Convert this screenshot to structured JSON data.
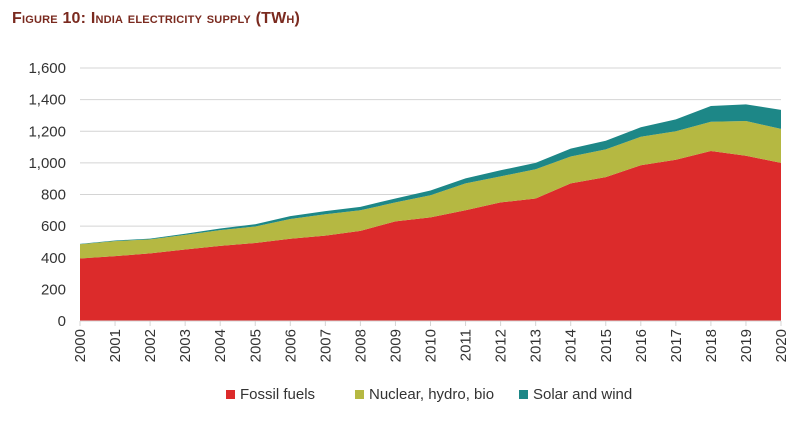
{
  "title": "Figure 10: India electricity supply (TWh)",
  "chart_data": {
    "type": "area",
    "stacked": true,
    "title": "Figure 10: India electricity supply (TWh)",
    "xlabel": "",
    "ylabel": "",
    "x": [
      "2000",
      "2001",
      "2002",
      "2003",
      "2004",
      "2005",
      "2006",
      "2007",
      "2008",
      "2009",
      "2010",
      "2011",
      "2012",
      "2013",
      "2014",
      "2015",
      "2016",
      "2017",
      "2018",
      "2019",
      "2020"
    ],
    "ylim": [
      0,
      1600
    ],
    "yticks": [
      0,
      200,
      400,
      600,
      800,
      1000,
      1200,
      1400,
      1600
    ],
    "ytick_labels": [
      "0",
      "200",
      "400",
      "600",
      "800",
      "1,000",
      "1,200",
      "1,400",
      "1,600"
    ],
    "grid": "horizontal",
    "legend_position": "bottom",
    "series": [
      {
        "name": "Fossil fuels",
        "color": "#dc2b2b",
        "values": [
          395,
          410,
          428,
          452,
          475,
          493,
          520,
          540,
          570,
          630,
          655,
          700,
          750,
          775,
          870,
          910,
          985,
          1020,
          1075,
          1045,
          1000
        ]
      },
      {
        "name": "Nuclear, hydro, bio",
        "color": "#b5b842",
        "values": [
          90,
          95,
          88,
          93,
          100,
          105,
          125,
          135,
          130,
          120,
          140,
          170,
          165,
          185,
          170,
          175,
          180,
          180,
          185,
          220,
          215
        ]
      },
      {
        "name": "Solar and wind",
        "color": "#1d8787",
        "values": [
          3,
          4,
          5,
          7,
          10,
          14,
          18,
          20,
          22,
          25,
          30,
          32,
          38,
          40,
          50,
          55,
          60,
          75,
          100,
          105,
          120
        ]
      }
    ]
  }
}
